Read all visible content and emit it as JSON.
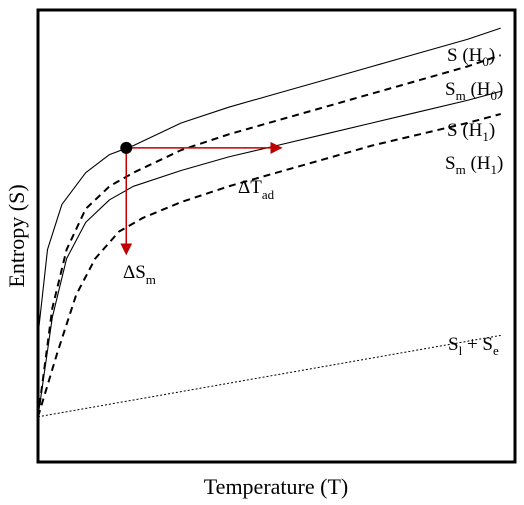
{
  "chart_data": {
    "type": "line",
    "xlabel": "Temperature (T)",
    "ylabel": "Entropy (S)",
    "xlim": [
      0,
      100
    ],
    "ylim": [
      0,
      100
    ],
    "grid": false,
    "ticks": false,
    "series": [
      {
        "label_main": "S (H",
        "label_sub": "0",
        "label_tail": ")",
        "style": "solid",
        "x": [
          0,
          2,
          5,
          10,
          15,
          20,
          30,
          40,
          50,
          60,
          70,
          80,
          90,
          97
        ],
        "y": [
          28,
          47,
          57,
          64,
          68,
          70,
          75,
          78.5,
          81.5,
          84.5,
          87.5,
          90.5,
          93.5,
          96
        ]
      },
      {
        "label_main": "S",
        "label_sub": "m",
        "label_tail": " (H",
        "label_sub2": "0",
        "label_tail2": ")",
        "style": "dashed",
        "x": [
          0,
          3,
          6,
          10,
          15,
          20,
          30,
          40,
          50,
          60,
          70,
          80,
          90,
          97
        ],
        "y": [
          10,
          34,
          47,
          56,
          61,
          64,
          69,
          72.5,
          75.5,
          78.5,
          81.5,
          84.5,
          87.5,
          90
        ]
      },
      {
        "label_main": "S (H",
        "label_sub": "1",
        "label_tail": ")",
        "style": "solid",
        "x": [
          0,
          3,
          6,
          10,
          15,
          20,
          30,
          40,
          50,
          60,
          70,
          80,
          90,
          97
        ],
        "y": [
          10,
          32,
          45,
          53,
          58,
          61,
          64.5,
          67.5,
          70,
          72.5,
          75,
          77.5,
          80,
          82
        ]
      },
      {
        "label_main": "S",
        "label_sub": "m",
        "label_tail": " (H",
        "label_sub2": "1",
        "label_tail2": ")",
        "style": "dashed",
        "x": [
          0,
          4,
          8,
          12,
          17,
          22,
          30,
          40,
          50,
          60,
          70,
          80,
          90,
          97
        ],
        "y": [
          10,
          24,
          37,
          45,
          51,
          54,
          57.5,
          61,
          64,
          67,
          70,
          72.5,
          75,
          77
        ]
      },
      {
        "label_main": "S",
        "label_sub": "l",
        "label_tail": " + S",
        "label_sub2": "e",
        "label_tail2": "",
        "style": "dotted",
        "x": [
          0,
          97
        ],
        "y": [
          10,
          28
        ]
      }
    ],
    "annotations": {
      "point": {
        "x": 18.5,
        "y": 69.5
      },
      "delta_t": {
        "text": "ΔT",
        "sub": "ad",
        "x_end": 51
      },
      "delta_s": {
        "text": "ΔS",
        "sub": "m",
        "y_end": 46
      },
      "arrow_color": "#c00000"
    }
  }
}
